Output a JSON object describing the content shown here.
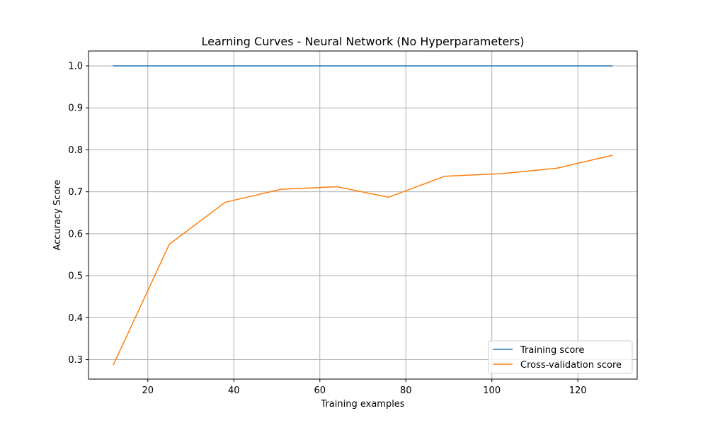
{
  "chart_data": {
    "type": "line",
    "title": "Learning Curves - Neural Network (No Hyperparameters)",
    "xlabel": "Training examples",
    "ylabel": "Accuracy Score",
    "xlim": [
      6.2,
      133.8
    ],
    "ylim": [
      0.2535,
      1.0355
    ],
    "x_ticks": [
      20,
      40,
      60,
      80,
      100,
      120
    ],
    "y_ticks": [
      0.3,
      0.4,
      0.5,
      0.6,
      0.7,
      0.8,
      0.9,
      1.0
    ],
    "x_tick_labels": [
      "20",
      "40",
      "60",
      "80",
      "100",
      "120"
    ],
    "y_tick_labels": [
      "0.3",
      "0.4",
      "0.5",
      "0.6",
      "0.7",
      "0.8",
      "0.9",
      "1.0"
    ],
    "grid": true,
    "legend_position": "lower-right",
    "x": [
      12,
      25,
      38,
      51,
      64,
      76,
      89,
      102,
      115,
      128
    ],
    "series": [
      {
        "name": "Training score",
        "color": "#1f77b4",
        "values": [
          1.0,
          1.0,
          1.0,
          1.0,
          1.0,
          1.0,
          1.0,
          1.0,
          1.0,
          1.0
        ]
      },
      {
        "name": "Cross-validation score",
        "color": "#ff7f0e",
        "values": [
          0.288,
          0.575,
          0.675,
          0.706,
          0.712,
          0.687,
          0.737,
          0.743,
          0.756,
          0.787
        ]
      }
    ]
  }
}
